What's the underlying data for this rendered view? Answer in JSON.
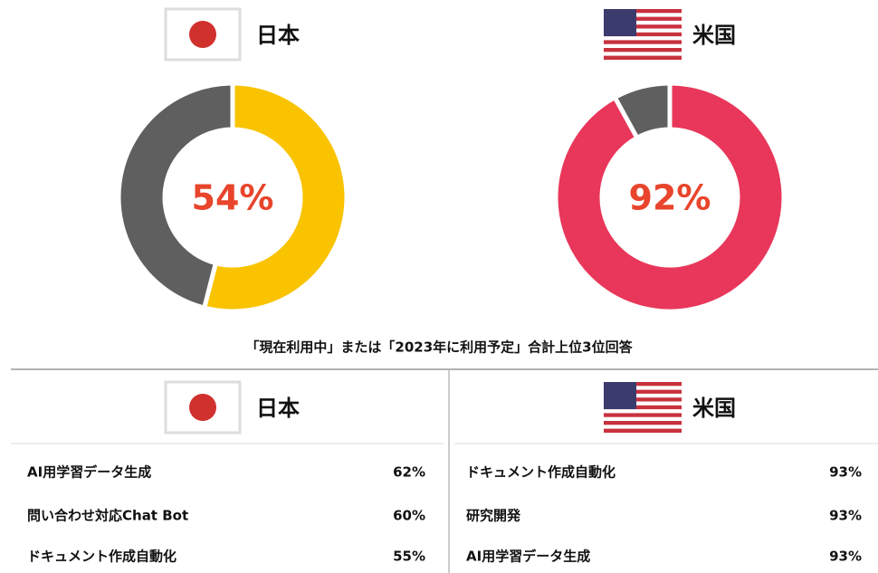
{
  "chart_data": [
    {
      "type": "pie",
      "title": "日本",
      "categories": [
        null,
        null
      ],
      "values": [
        54,
        46
      ],
      "value_labels": [
        "54%",
        null
      ],
      "colors": [
        "#f9c300",
        "#5f5f5f"
      ]
    },
    {
      "type": "pie",
      "title": "米国",
      "categories": [
        null,
        null
      ],
      "values": [
        92,
        8
      ],
      "value_labels": [
        "92%",
        null
      ],
      "colors": [
        "#e8375a",
        "#5f5f5f"
      ]
    }
  ],
  "table": {
    "caption": "「現在利用中」または「2023年に利用予定」合計上位3位回答",
    "columns": [
      {
        "header": "日本",
        "rows": [
          [
            "AI用学習データ生成",
            "62%"
          ],
          [
            "問い合わせ対応Chat Bot",
            "60%"
          ],
          [
            "ドキュメント作成自動化",
            "55%"
          ]
        ]
      },
      {
        "header": "米国",
        "rows": [
          [
            "ドキュメント作成自動化",
            "93%"
          ],
          [
            "研究開発",
            "93%"
          ],
          [
            "AI用学習データ生成",
            "93%"
          ]
        ]
      }
    ]
  }
}
